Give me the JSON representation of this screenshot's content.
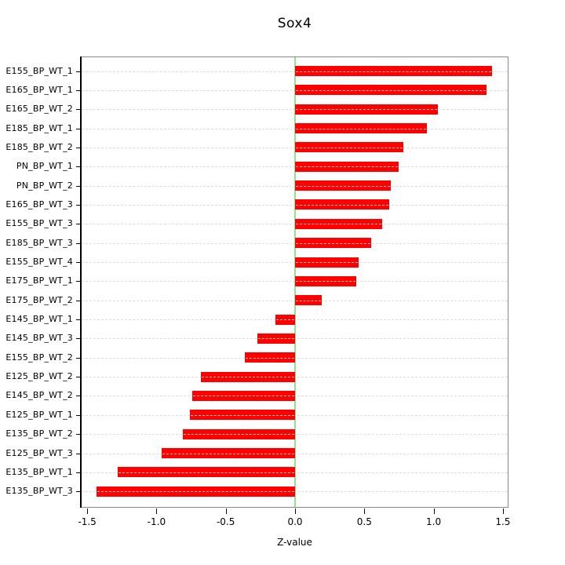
{
  "window": {
    "background": "#ffffff"
  },
  "chart_data": {
    "type": "bar",
    "orientation": "horizontal",
    "title": "Sox4",
    "xlabel": "Z-value",
    "ylabel": "",
    "xlim": [
      -1.55,
      1.55
    ],
    "x_ticks": [
      -1.5,
      -1.0,
      -0.5,
      0.0,
      0.5,
      1.0,
      1.5
    ],
    "x_tick_labels": [
      "-1.5",
      "-1.0",
      "-0.5",
      "0.0",
      "0.5",
      "1.0",
      "1.5"
    ],
    "grid": true,
    "grid_style": "dashed-lightgray-horizontal-per-row",
    "zero_reference_line": 0.0,
    "legend": null,
    "categories": [
      "E155_BP_WT_1",
      "E165_BP_WT_1",
      "E165_BP_WT_2",
      "E185_BP_WT_1",
      "E185_BP_WT_2",
      "PN_BP_WT_1",
      "PN_BP_WT_2",
      "E165_BP_WT_3",
      "E155_BP_WT_3",
      "E185_BP_WT_3",
      "E155_BP_WT_4",
      "E175_BP_WT_1",
      "E175_BP_WT_2",
      "E145_BP_WT_1",
      "E145_BP_WT_3",
      "E155_BP_WT_2",
      "E125_BP_WT_2",
      "E145_BP_WT_2",
      "E125_BP_WT_1",
      "E135_BP_WT_2",
      "E125_BP_WT_3",
      "E135_BP_WT_1",
      "E135_BP_WT_3"
    ],
    "values": [
      1.42,
      1.38,
      1.03,
      0.95,
      0.78,
      0.75,
      0.69,
      0.68,
      0.63,
      0.55,
      0.46,
      0.44,
      0.19,
      -0.14,
      -0.27,
      -0.36,
      -0.68,
      -0.74,
      -0.76,
      -0.81,
      -0.96,
      -1.28,
      -1.43
    ],
    "colors": {
      "bar": "#ff0000",
      "bar_center_dash": "rgba(255,255,255,0.8)",
      "zero_line": "#8ce68c",
      "grid": "#dcdcdc",
      "box_border": "#888888",
      "axis": "#000000",
      "text": "#000000"
    }
  }
}
